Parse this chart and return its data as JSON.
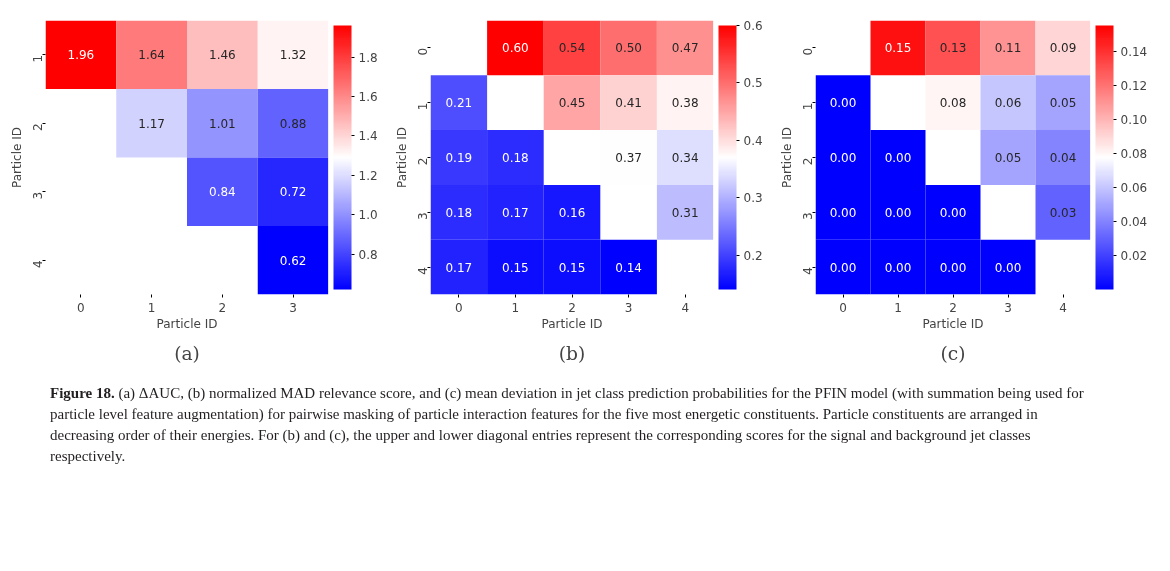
{
  "chart_data": [
    {
      "type": "heatmap",
      "title": "(a)",
      "xlabel": "Particle ID",
      "ylabel": "Particle ID",
      "categories": [
        "0",
        "1",
        "2",
        "3"
      ],
      "y_categories": [
        "1",
        "2",
        "3",
        "4"
      ],
      "cells": [
        [
          1.96,
          1.64,
          1.46,
          1.32
        ],
        [
          null,
          1.17,
          1.01,
          0.88
        ],
        [
          null,
          null,
          0.84,
          0.72
        ],
        [
          null,
          null,
          null,
          0.62
        ]
      ],
      "cell_labels": [
        [
          "1.96",
          "1.64",
          "1.46",
          "1.32"
        ],
        [
          null,
          "1.17",
          "1.01",
          "0.88"
        ],
        [
          null,
          null,
          "0.84",
          "0.72"
        ],
        [
          null,
          null,
          null,
          "0.62"
        ]
      ],
      "clim": [
        0.62,
        1.96
      ],
      "cticks": [
        0.8,
        {
          "value": 1.0,
          "label": "1.0"
        },
        1.2,
        1.4,
        1.6,
        1.8
      ]
    },
    {
      "type": "heatmap",
      "title": "(b)",
      "xlabel": "Particle ID",
      "ylabel": "Particle ID",
      "categories": [
        "0",
        "1",
        "2",
        "3",
        "4"
      ],
      "y_categories": [
        "0",
        "1",
        "2",
        "3",
        "4"
      ],
      "cells": [
        [
          null,
          0.6,
          0.54,
          0.5,
          0.47
        ],
        [
          0.21,
          null,
          0.45,
          0.41,
          0.38
        ],
        [
          0.19,
          0.18,
          null,
          0.37,
          0.34
        ],
        [
          0.18,
          0.17,
          0.16,
          null,
          0.31
        ],
        [
          0.17,
          0.15,
          0.15,
          0.14,
          null
        ]
      ],
      "cell_labels": [
        [
          null,
          "0.60",
          "0.54",
          "0.50",
          "0.47"
        ],
        [
          "0.21",
          null,
          "0.45",
          "0.41",
          "0.38"
        ],
        [
          "0.19",
          "0.18",
          null,
          "0.37",
          "0.34"
        ],
        [
          "0.18",
          "0.17",
          "0.16",
          null,
          "0.31"
        ],
        [
          "0.17",
          "0.15",
          "0.15",
          "0.14",
          null
        ]
      ],
      "clim": [
        0.14,
        0.6
      ],
      "cticks": [
        0.2,
        0.3,
        0.4,
        0.5,
        0.6
      ]
    },
    {
      "type": "heatmap",
      "title": "(c)",
      "xlabel": "Particle ID",
      "ylabel": "Particle ID",
      "categories": [
        "0",
        "1",
        "2",
        "3",
        "4"
      ],
      "y_categories": [
        "0",
        "1",
        "2",
        "3",
        "4"
      ],
      "cells": [
        [
          null,
          0.15,
          0.13,
          0.11,
          0.09
        ],
        [
          0.0,
          null,
          0.08,
          0.06,
          0.05
        ],
        [
          0.0,
          0.0,
          null,
          0.05,
          0.04
        ],
        [
          0.0,
          0.0,
          0.0,
          null,
          0.03
        ],
        [
          0.0,
          0.0,
          0.0,
          0.0,
          null
        ]
      ],
      "cell_labels": [
        [
          null,
          "0.15",
          "0.13",
          "0.11",
          "0.09"
        ],
        [
          "0.00",
          null,
          "0.08",
          "0.06",
          "0.05"
        ],
        [
          "0.00",
          "0.00",
          null,
          "0.05",
          "0.04"
        ],
        [
          "0.00",
          "0.00",
          "0.00",
          null,
          "0.03"
        ],
        [
          "0.00",
          "0.00",
          "0.00",
          "0.00",
          null
        ]
      ],
      "clim": [
        0.0,
        0.155
      ],
      "cticks": [
        0.02,
        0.04,
        0.06,
        0.08,
        {
          "value": 0.1,
          "label": "0.10"
        },
        0.12,
        0.14
      ]
    },
    {
      "type": "other",
      "title": "Figure 18.",
      "annotations": [
        "(a) ΔAUC, (b) normalized MAD relevance score, and (c) mean deviation in jet class prediction probabilities for the PFIN model (with summation being used for particle level feature augmentation) for pairwise masking of particle interaction features for the five most energetic constituents. Particle constituents are arranged in decreasing order of their energies. For (b) and (c), the upper and lower diagonal entries represent the corresponding scores for the signal and background jet classes respectively."
      ]
    }
  ]
}
